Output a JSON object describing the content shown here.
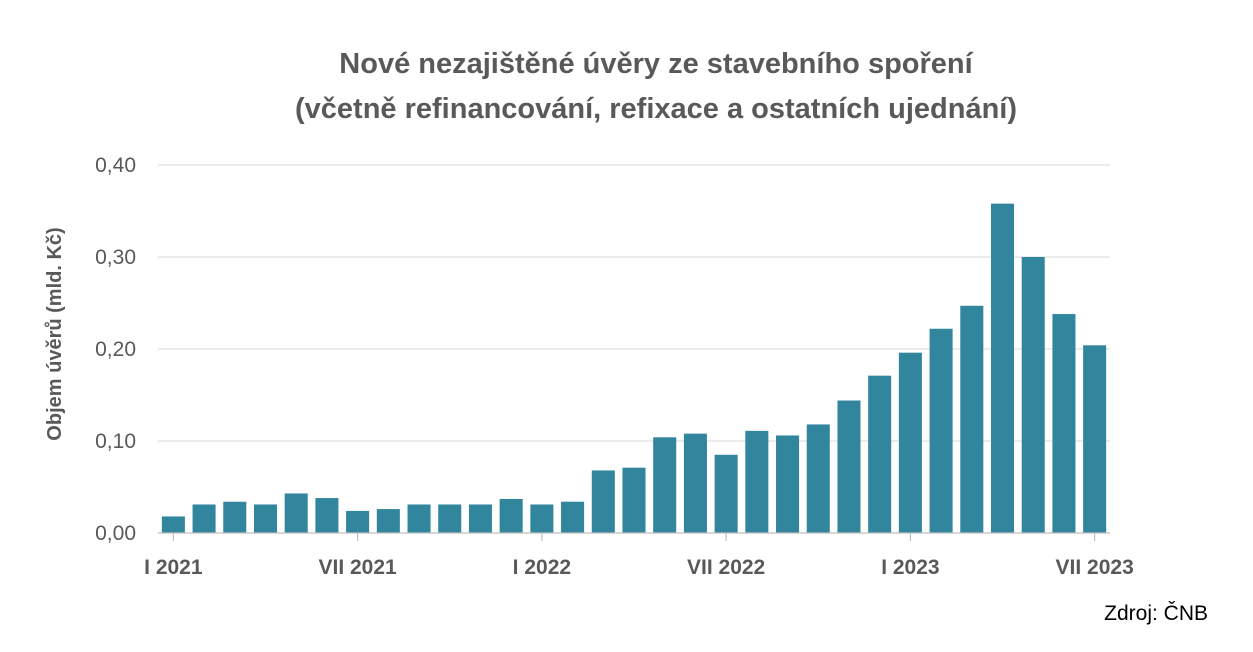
{
  "chart_data": {
    "type": "bar",
    "title": [
      "Nové nezajištěné úvěry ze stavebního spoření",
      "(včetně refinancování, refixace a ostatních ujednání)"
    ],
    "ylabel": "Objem úvěrů (mld. Kč)",
    "xlabel": "",
    "ylim": [
      0,
      0.4
    ],
    "yticks": [
      0,
      0.1,
      0.2,
      0.3,
      0.4
    ],
    "ytick_labels": [
      "0,00",
      "0,10",
      "0,20",
      "0,30",
      "0,40"
    ],
    "xtick_labels": [
      {
        "index": 0,
        "label": "I 2021"
      },
      {
        "index": 6,
        "label": "VII 2021"
      },
      {
        "index": 12,
        "label": "I 2022"
      },
      {
        "index": 18,
        "label": "VII 2022"
      },
      {
        "index": 24,
        "label": "I 2023"
      },
      {
        "index": 30,
        "label": "VII 2023"
      }
    ],
    "categories": [
      "I 2021",
      "II 2021",
      "III 2021",
      "IV 2021",
      "V 2021",
      "VI 2021",
      "VII 2021",
      "VIII 2021",
      "IX 2021",
      "X 2021",
      "XI 2021",
      "XII 2021",
      "I 2022",
      "II 2022",
      "III 2022",
      "IV 2022",
      "V 2022",
      "VI 2022",
      "VII 2022",
      "VIII 2022",
      "IX 2022",
      "X 2022",
      "XI 2022",
      "XII 2022",
      "I 2023",
      "II 2023",
      "III 2023",
      "IV 2023",
      "V 2023",
      "VI 2023",
      "VII 2023"
    ],
    "values": [
      0.018,
      0.031,
      0.034,
      0.031,
      0.043,
      0.038,
      0.024,
      0.026,
      0.031,
      0.031,
      0.031,
      0.037,
      0.031,
      0.034,
      0.068,
      0.071,
      0.104,
      0.108,
      0.085,
      0.111,
      0.106,
      0.118,
      0.144,
      0.171,
      0.196,
      0.222,
      0.247,
      0.358,
      0.3,
      0.238,
      0.204
    ],
    "bar_color": "#31859c",
    "grid": true,
    "legend": "none",
    "source": "Zdroj: ČNB"
  }
}
